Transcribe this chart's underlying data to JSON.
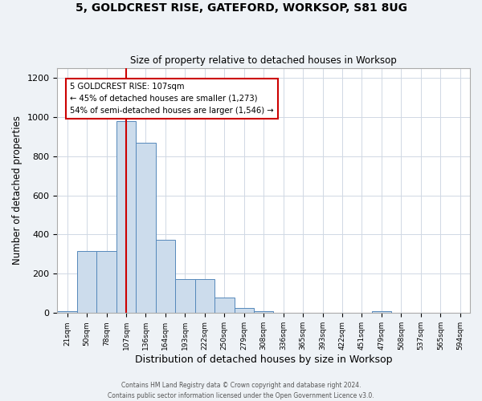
{
  "title_line1": "5, GOLDCREST RISE, GATEFORD, WORKSOP, S81 8UG",
  "title_line2": "Size of property relative to detached houses in Worksop",
  "xlabel": "Distribution of detached houses by size in Worksop",
  "ylabel": "Number of detached properties",
  "bin_labels": [
    "21sqm",
    "50sqm",
    "78sqm",
    "107sqm",
    "136sqm",
    "164sqm",
    "193sqm",
    "222sqm",
    "250sqm",
    "279sqm",
    "308sqm",
    "336sqm",
    "365sqm",
    "393sqm",
    "422sqm",
    "451sqm",
    "479sqm",
    "508sqm",
    "537sqm",
    "565sqm",
    "594sqm"
  ],
  "bar_heights": [
    10,
    315,
    315,
    980,
    870,
    375,
    175,
    175,
    80,
    25,
    8,
    2,
    2,
    2,
    2,
    2,
    10,
    2,
    2,
    2,
    2
  ],
  "bar_color": "#ccdcec",
  "bar_edge_color": "#5588bb",
  "property_line_x": 3,
  "annotation_text": "5 GOLDCREST RISE: 107sqm\n← 45% of detached houses are smaller (1,273)\n54% of semi-detached houses are larger (1,546) →",
  "annotation_box_color": "#ffffff",
  "annotation_box_edge_color": "#cc0000",
  "red_line_color": "#cc0000",
  "ylim": [
    0,
    1250
  ],
  "yticks": [
    0,
    200,
    400,
    600,
    800,
    1000,
    1200
  ],
  "footer_line1": "Contains HM Land Registry data © Crown copyright and database right 2024.",
  "footer_line2": "Contains public sector information licensed under the Open Government Licence v3.0.",
  "background_color": "#eef2f6",
  "plot_background_color": "#ffffff",
  "grid_color": "#d0d8e4"
}
